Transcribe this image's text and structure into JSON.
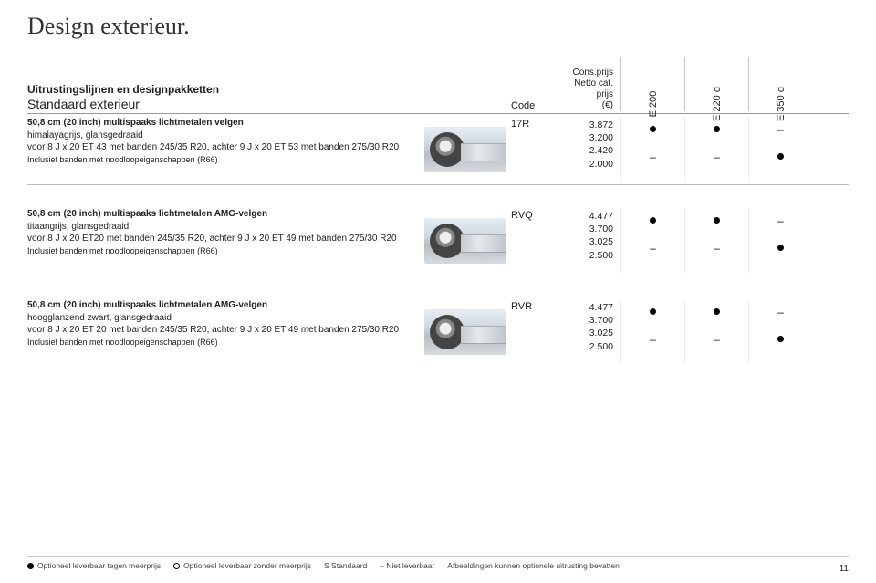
{
  "title": "Design exterieur.",
  "header": {
    "line1": "Uitrustingslijnen en designpakketten",
    "line2": "Standaard exterieur",
    "code_label": "Code",
    "price_label_l1": "Cons.prijs",
    "price_label_l2": "Netto cat.",
    "price_label_l3": "prijs",
    "price_label_l4": "(€)",
    "models": [
      "E 200",
      "E 220 d",
      "E 350 d"
    ]
  },
  "rows": [
    {
      "l1": "50,8 cm (20 inch) multispaaks lichtmetalen velgen",
      "l2": "himalayagrijs, glansgedraaid",
      "l3": "voor 8 J x 20 ET 43 met banden 245/35 R20, achter 9 J x 20 ET 53 met banden 275/30 R20",
      "l4": "Inclusief banden met noodloopeigenschappen (R66)",
      "code": "17R",
      "prices": [
        "3.872",
        "3.200",
        "2.420",
        "2.000"
      ],
      "avail": [
        [
          "dot",
          "dash"
        ],
        [
          "dot",
          "dash"
        ],
        [
          "dash",
          "dot"
        ]
      ]
    },
    {
      "l1": "50,8 cm (20 inch) multispaaks lichtmetalen AMG-velgen",
      "l2": "titaangrijs, glansgedraaid",
      "l3": "voor 8 J x 20 ET20 met banden 245/35 R20, achter 9 J x 20 ET 49 met banden 275/30 R20",
      "l4": "Inclusief banden met noodloopeigenschappen (R66)",
      "code": "RVQ",
      "prices": [
        "4.477",
        "3.700",
        "3.025",
        "2.500"
      ],
      "avail": [
        [
          "dot",
          "dash"
        ],
        [
          "dot",
          "dash"
        ],
        [
          "dash",
          "dot"
        ]
      ]
    },
    {
      "l1": "50,8 cm (20 inch) multispaaks lichtmetalen AMG-velgen",
      "l2": "hoogglanzend zwart, glansgedraaid",
      "l3": "voor 8 J x 20 ET 20 met banden 245/35 R20, achter 9 J x 20 ET 49 met banden 275/30 R20",
      "l4": "Inclusief banden met noodloopeigenschappen (R66)",
      "code": "RVR",
      "prices": [
        "4.477",
        "3.700",
        "3.025",
        "2.500"
      ],
      "avail": [
        [
          "dot",
          "dash"
        ],
        [
          "dot",
          "dash"
        ],
        [
          "dash",
          "dot"
        ]
      ]
    }
  ],
  "legend": {
    "i1": "Optioneel leverbaar tegen meerprijs",
    "i2": "Optioneel leverbaar zonder meerprijs",
    "i3": "S Standaard",
    "i4": "– Niet leverbaar",
    "i5": "Afbeeldingen kunnen optionele uitrusting bevatten"
  },
  "page_number": "11"
}
